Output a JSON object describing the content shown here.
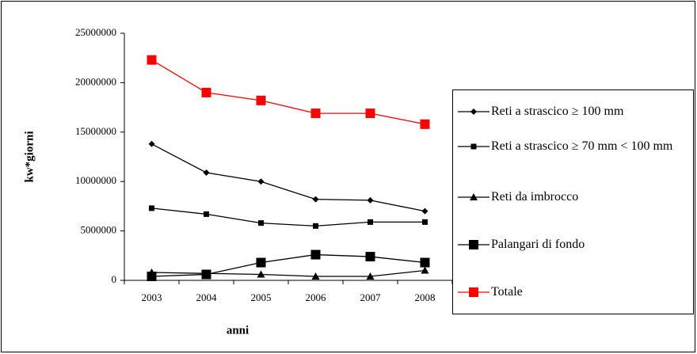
{
  "chart_data": {
    "type": "line",
    "x_label": "anni",
    "y_label": "kw*giorni",
    "categories": [
      "2003",
      "2004",
      "2005",
      "2006",
      "2007",
      "2008"
    ],
    "ylim": [
      0,
      25000000
    ],
    "yticks": [
      0,
      5000000,
      10000000,
      15000000,
      20000000,
      25000000
    ],
    "series": [
      {
        "name": "Reti a strascico ≥ 100 mm",
        "color": "#000000",
        "marker": "diamond",
        "values": [
          13800000,
          10900000,
          10000000,
          8200000,
          8100000,
          7000000
        ]
      },
      {
        "name": "Reti a strascico ≥ 70 mm < 100 mm",
        "color": "#000000",
        "marker": "small-square",
        "values": [
          7300000,
          6700000,
          5800000,
          5500000,
          5900000,
          5900000
        ]
      },
      {
        "name": "Reti da imbrocco",
        "color": "#000000",
        "marker": "triangle",
        "values": [
          800000,
          700000,
          600000,
          400000,
          400000,
          1000000
        ]
      },
      {
        "name": "Palangari di fondo",
        "color": "#000000",
        "marker": "square",
        "values": [
          400000,
          600000,
          1800000,
          2600000,
          2400000,
          1800000
        ]
      },
      {
        "name": "Totale",
        "color": "#ff0000",
        "marker": "square",
        "values": [
          22300000,
          19000000,
          18200000,
          16900000,
          16900000,
          15800000
        ]
      }
    ]
  }
}
